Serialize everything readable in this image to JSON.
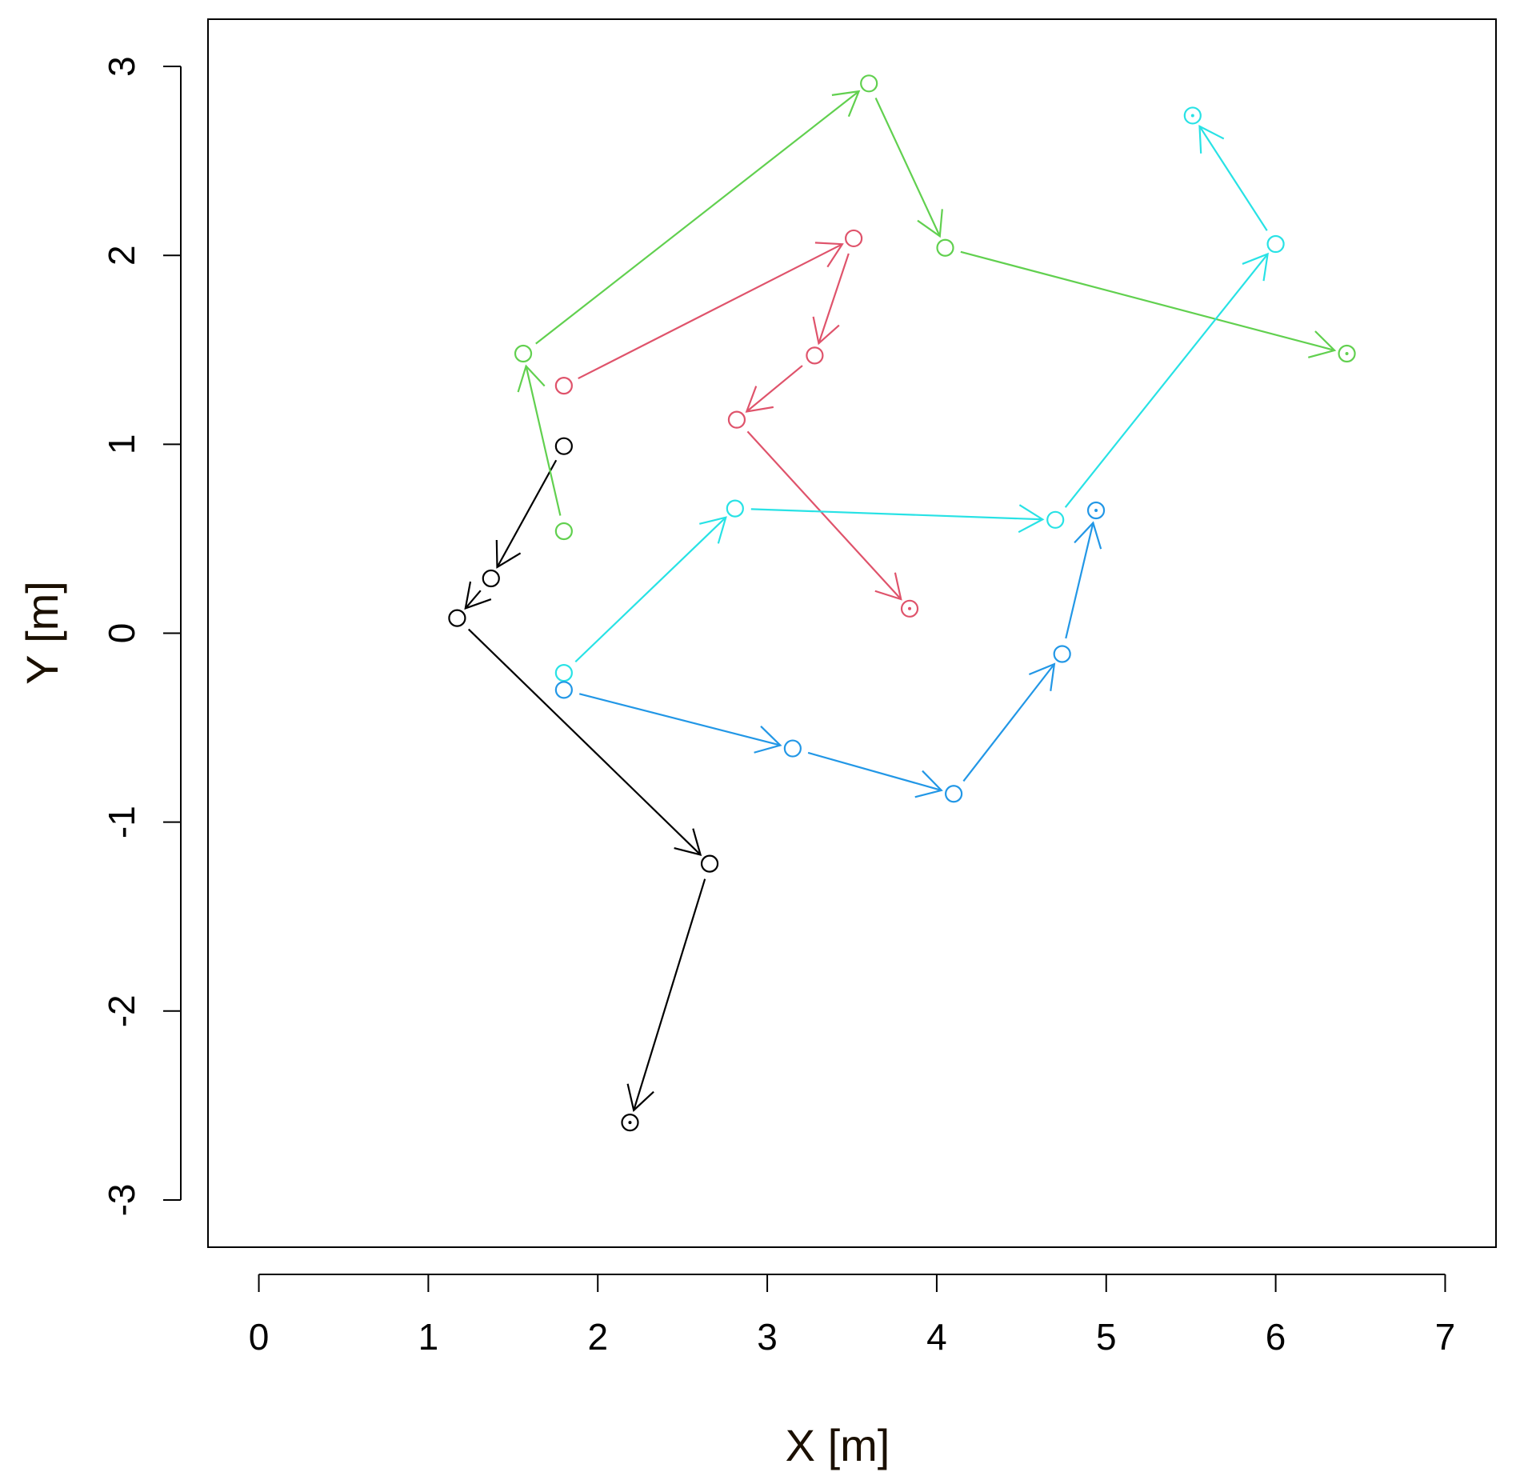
{
  "chart_data": {
    "type": "line",
    "title": "",
    "xlabel": "X [m]",
    "ylabel": "Y [m]",
    "xlim": [
      -0.3,
      7.3
    ],
    "ylim": [
      -3.25,
      3.25
    ],
    "xticks": [
      0,
      1,
      2,
      3,
      4,
      5,
      6,
      7
    ],
    "yticks": [
      -3,
      -2,
      -1,
      0,
      1,
      2,
      3
    ],
    "grid": false,
    "legend": "none",
    "series": [
      {
        "color": "#000000",
        "points": [
          [
            1.8,
            0.99
          ],
          [
            1.37,
            0.29
          ],
          [
            1.17,
            0.08
          ],
          [
            2.66,
            -1.22
          ],
          [
            2.19,
            -2.59
          ]
        ]
      },
      {
        "color": "#DF536B",
        "points": [
          [
            1.8,
            1.31
          ],
          [
            3.51,
            2.09
          ],
          [
            3.28,
            1.47
          ],
          [
            2.82,
            1.13
          ],
          [
            3.84,
            0.13
          ]
        ]
      },
      {
        "color": "#61D04F",
        "points": [
          [
            1.8,
            0.54
          ],
          [
            1.56,
            1.48
          ],
          [
            3.6,
            2.91
          ],
          [
            4.05,
            2.04
          ],
          [
            6.42,
            1.48
          ]
        ]
      },
      {
        "color": "#28E2E5",
        "points": [
          [
            1.8,
            -0.21
          ],
          [
            2.81,
            0.66
          ],
          [
            4.7,
            0.6
          ],
          [
            6.0,
            2.06
          ],
          [
            5.51,
            2.74
          ]
        ]
      },
      {
        "color": "#2297E6",
        "points": [
          [
            1.8,
            -0.3
          ],
          [
            3.15,
            -0.61
          ],
          [
            4.1,
            -0.85
          ],
          [
            4.74,
            -0.11
          ],
          [
            4.94,
            0.65
          ]
        ]
      }
    ]
  }
}
